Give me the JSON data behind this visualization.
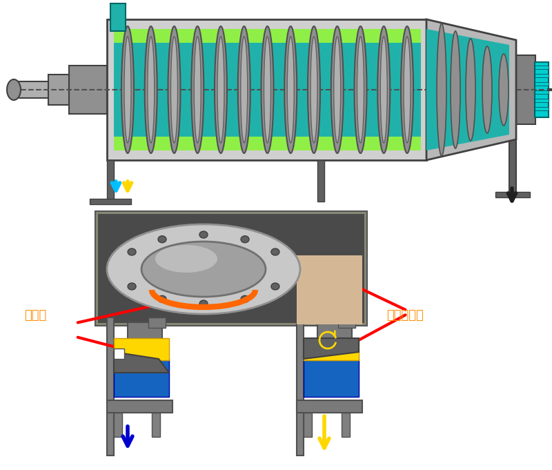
{
  "title": "",
  "bg_color": "#ffffff",
  "label_shui": "水排出",
  "label_qing": "輕相油排出",
  "label_color": "#FF8C00",
  "arrow_color": "#FF0000",
  "blue_arrow_color": "#0000CD",
  "yellow_arrow_color": "#FFD700",
  "cyan_arrow_color": "#00BFFF",
  "blue_fill": "#1565C0",
  "yellow_fill": "#FFD700",
  "gray_fill": "#808080",
  "dark_gray": "#404040",
  "teal_fill": "#008080",
  "light_teal": "#00CED1",
  "green_yellow": "#ADFF2F",
  "silver": "#C0C0C0",
  "dark_silver": "#A0A0A0"
}
